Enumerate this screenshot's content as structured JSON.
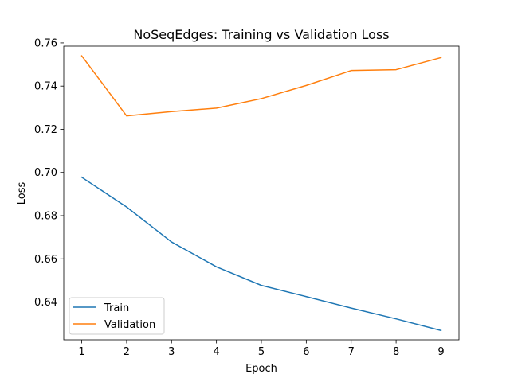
{
  "chart_data": {
    "type": "line",
    "title": "NoSeqEdges: Training vs Validation Loss",
    "xlabel": "Epoch",
    "ylabel": "Loss",
    "x": [
      1,
      2,
      3,
      4,
      5,
      6,
      7,
      8,
      9
    ],
    "xticks": [
      "1",
      "2",
      "3",
      "4",
      "5",
      "6",
      "7",
      "8",
      "9"
    ],
    "yticks": [
      "0.64",
      "0.66",
      "0.68",
      "0.70",
      "0.72",
      "0.74",
      "0.76"
    ],
    "xlim": [
      0.6,
      9.4
    ],
    "ylim": [
      0.6225,
      0.7585
    ],
    "grid": false,
    "legend_position": "lower-left",
    "series": [
      {
        "name": "Train",
        "color": "#1f77b4",
        "values": [
          0.6978,
          0.684,
          0.6678,
          0.6563,
          0.6477,
          0.6425,
          0.6372,
          0.6322,
          0.6268
        ]
      },
      {
        "name": "Validation",
        "color": "#ff7f0e",
        "values": [
          0.754,
          0.7262,
          0.7282,
          0.7298,
          0.7342,
          0.7403,
          0.7472,
          0.7476,
          0.7532
        ]
      }
    ]
  }
}
